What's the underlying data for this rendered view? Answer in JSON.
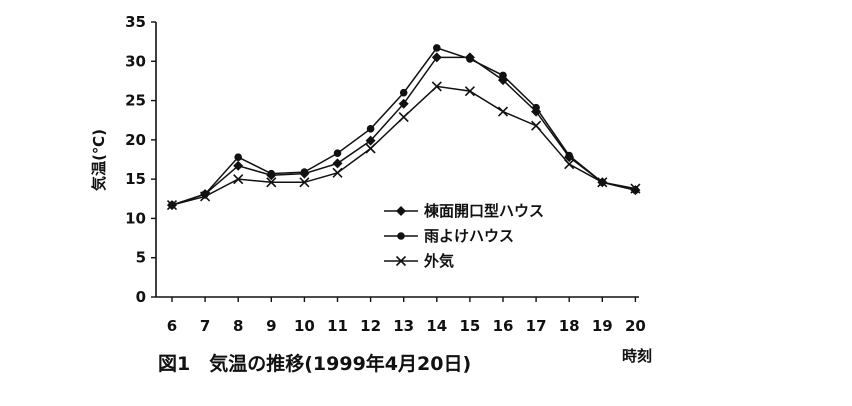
{
  "chart_data": {
    "type": "line",
    "title": "",
    "caption": "図1　気温の推移(1999年4月20日)",
    "xlabel": "時刻",
    "ylabel": "気温(℃)",
    "ylim": [
      0,
      35
    ],
    "yticks": [
      0,
      5,
      10,
      15,
      20,
      25,
      30,
      35
    ],
    "x": [
      6,
      7,
      8,
      9,
      10,
      11,
      12,
      13,
      14,
      15,
      16,
      17,
      18,
      19,
      20
    ],
    "legend_position": "center-right",
    "grid": false,
    "series": [
      {
        "name": "棟面開口型ハウス",
        "marker": "diamond",
        "values": [
          11.7,
          13.1,
          16.7,
          15.5,
          15.7,
          17.0,
          19.9,
          24.6,
          30.5,
          30.5,
          27.6,
          23.6,
          17.8,
          14.6,
          13.6
        ]
      },
      {
        "name": "雨よけハウス",
        "marker": "circle",
        "values": [
          11.7,
          13.1,
          17.8,
          15.7,
          15.9,
          18.3,
          21.4,
          26.0,
          31.7,
          30.3,
          28.2,
          24.1,
          18.0,
          14.6,
          13.6
        ]
      },
      {
        "name": "外気",
        "marker": "cross",
        "values": [
          11.7,
          12.8,
          15.0,
          14.6,
          14.6,
          15.8,
          18.9,
          22.9,
          26.8,
          26.2,
          23.6,
          21.8,
          16.9,
          14.6,
          13.8
        ]
      }
    ]
  }
}
